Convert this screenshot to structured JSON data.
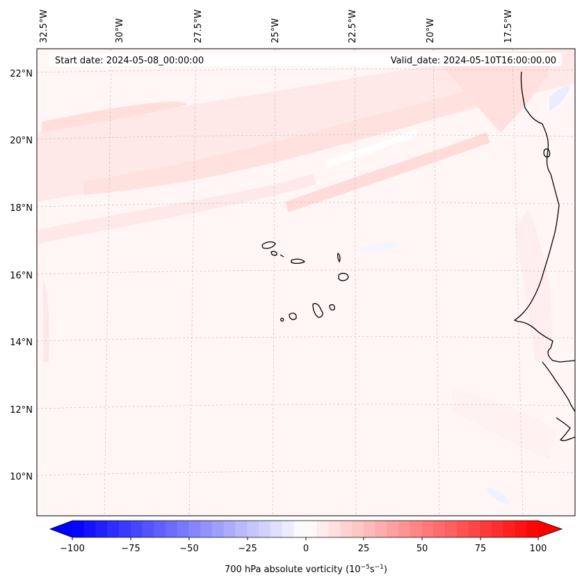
{
  "map": {
    "start_date": "Start date: 2024-05-08_00:00:00",
    "valid_date": "Valid_date: 2024-05-10T16:00:00.00",
    "lon_labels": [
      "32.5°W",
      "30°W",
      "27.5°W",
      "25°W",
      "22.5°W",
      "20°W",
      "17.5°W"
    ],
    "lat_labels": [
      "22°N",
      "20°N",
      "18°N",
      "16°N",
      "14°N",
      "12°N",
      "10°N"
    ]
  },
  "colorbar": {
    "label": "700 hPa absolute vorticity (10",
    "label_exp1": "−5",
    "label_mid": "s",
    "label_exp2": "−1",
    "label_end": ")",
    "ticks": [
      "−100",
      "−75",
      "−50",
      "−25",
      "0",
      "25",
      "50",
      "75",
      "100"
    ],
    "min": -100,
    "max": 100,
    "color_low": "#0000ff",
    "color_mid": "#ffffff",
    "color_high": "#ff0000"
  }
}
